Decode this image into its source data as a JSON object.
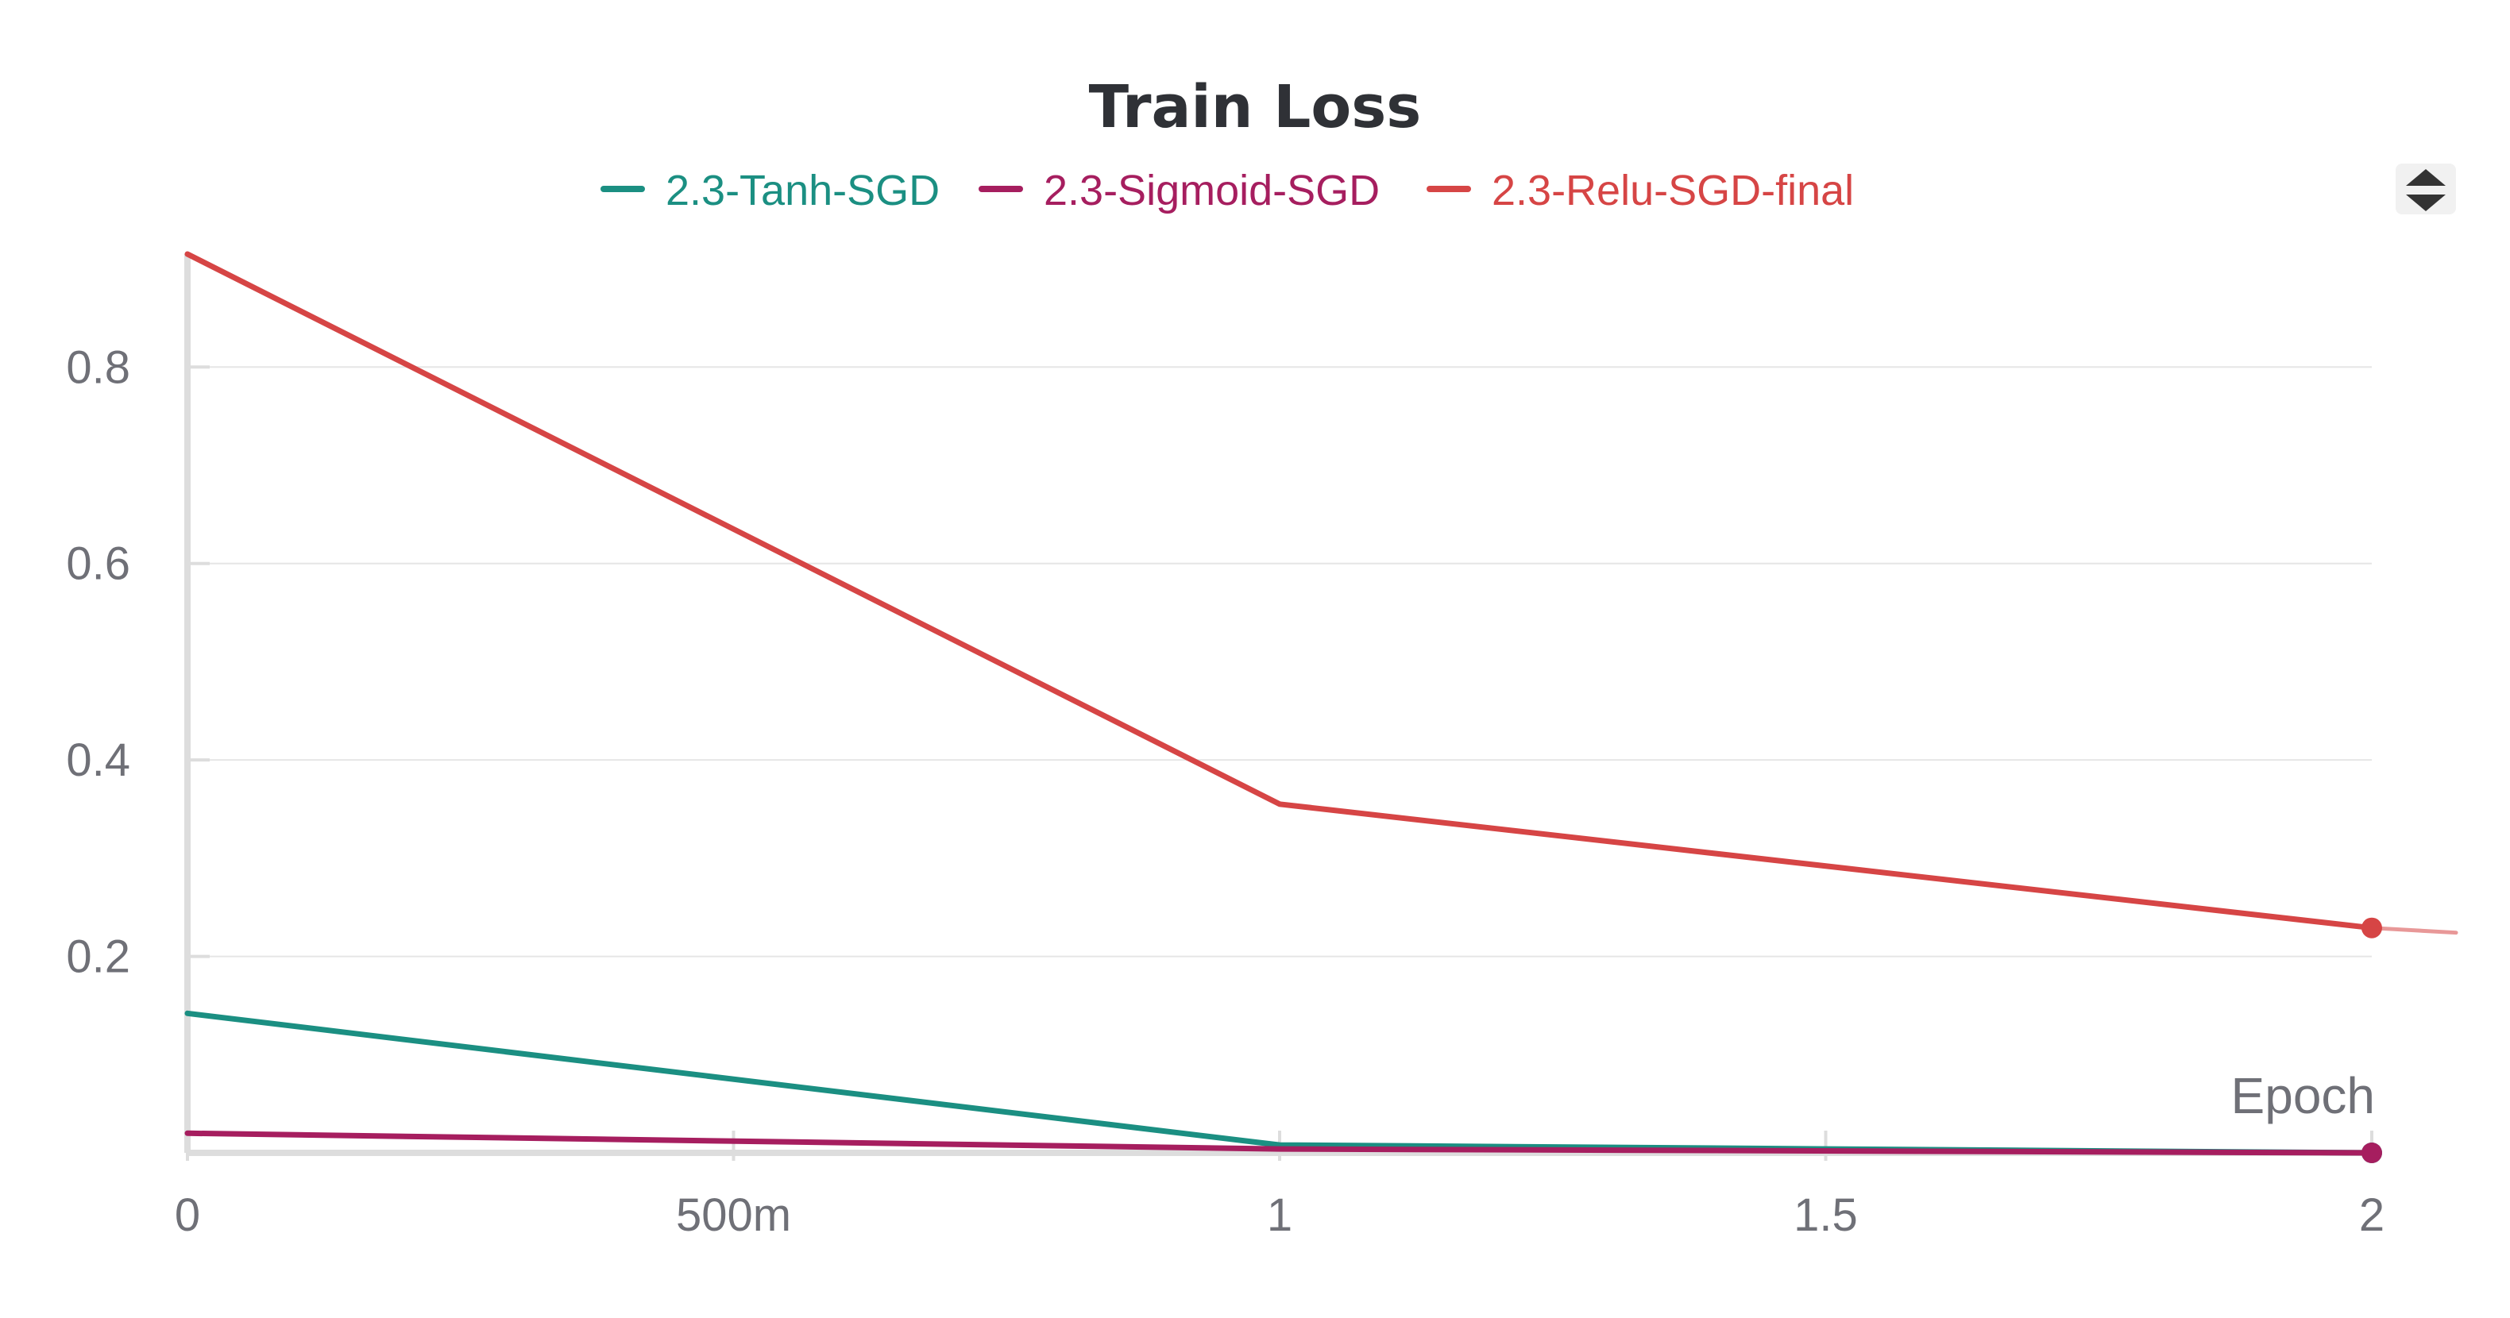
{
  "chart_data": {
    "type": "line",
    "title": "Train Loss",
    "xlabel": "Epoch",
    "ylabel": "",
    "x": [
      0,
      1,
      2
    ],
    "x_ticks": [
      {
        "value": 0,
        "label": "0"
      },
      {
        "value": 0.5,
        "label": "500m"
      },
      {
        "value": 1,
        "label": "1"
      },
      {
        "value": 1.5,
        "label": "1.5"
      },
      {
        "value": 2,
        "label": "2"
      }
    ],
    "y_ticks": [
      {
        "value": 0.2,
        "label": "0.2"
      },
      {
        "value": 0.4,
        "label": "0.4"
      },
      {
        "value": 0.6,
        "label": "0.6"
      },
      {
        "value": 0.8,
        "label": "0.8"
      }
    ],
    "xlim": [
      0,
      2
    ],
    "ylim": [
      0,
      0.915
    ],
    "grid": true,
    "legend_position": "top-center",
    "series": [
      {
        "name": "2.3-Tanh-SGD",
        "color": "#1b8f82",
        "values": [
          0.142,
          0.008,
          0.0
        ]
      },
      {
        "name": "2.3-Sigmoid-SGD",
        "color": "#a61e5f",
        "values": [
          0.02,
          0.004,
          0.0
        ]
      },
      {
        "name": "2.3-Relu-SGD-final",
        "color": "#d64545",
        "values": [
          0.915,
          0.355,
          0.229
        ]
      }
    ],
    "controls": {
      "legend_toggle_icon": "sort-arrows-icon"
    }
  }
}
